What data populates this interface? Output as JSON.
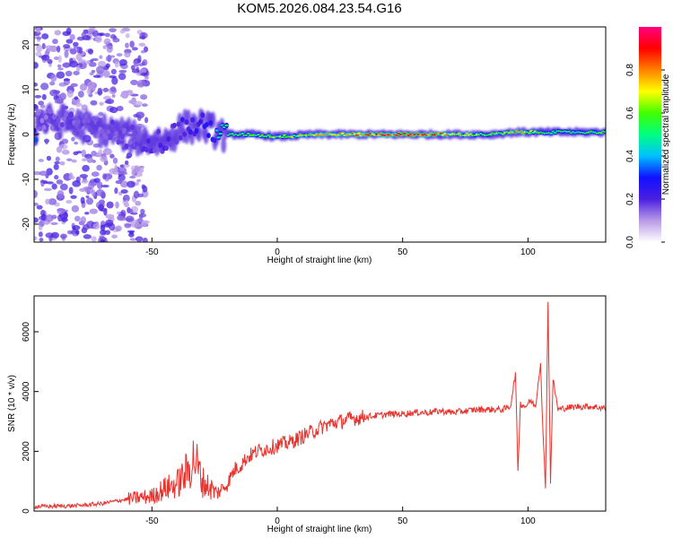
{
  "title": "KOM5.2026.084.23.54.G16",
  "chart_data": [
    {
      "type": "heatmap",
      "xlabel": "Height of straight line (km)",
      "ylabel": "Frequency (Hz)",
      "xlim": [
        -97,
        131
      ],
      "ylim": [
        -24,
        24
      ],
      "xticks": [
        -50,
        0,
        50,
        100
      ],
      "yticks": [
        -20,
        -10,
        0,
        10,
        20
      ],
      "colorbar": {
        "label": "Normalized spectral amplitude",
        "range": [
          0,
          1
        ],
        "ticks": [
          "0.0",
          "0.2",
          "0.4",
          "0.6",
          "0.8"
        ],
        "colors": [
          "#ffffff",
          "#b89ae6",
          "#4a1fe0",
          "#1010ff",
          "#00c0ff",
          "#00ff80",
          "#40ff00",
          "#ffff00",
          "#ff8000",
          "#ff0000",
          "#ff0080"
        ]
      },
      "ridge": [
        {
          "x": -96,
          "y": 3,
          "a": 0.25
        },
        {
          "x": -85,
          "y": 3,
          "a": 0.3
        },
        {
          "x": -75,
          "y": 1.5,
          "a": 0.28
        },
        {
          "x": -65,
          "y": 0.5,
          "a": 0.3
        },
        {
          "x": -55,
          "y": -1,
          "a": 0.3
        },
        {
          "x": -45,
          "y": -1.5,
          "a": 0.35
        },
        {
          "x": -38,
          "y": 1.5,
          "a": 0.38
        },
        {
          "x": -30,
          "y": 2,
          "a": 0.42
        },
        {
          "x": -22,
          "y": 0,
          "a": 0.5
        },
        {
          "x": -10,
          "y": 0,
          "a": 0.55
        },
        {
          "x": 0,
          "y": -0.5,
          "a": 0.6
        },
        {
          "x": 15,
          "y": 0,
          "a": 0.7
        },
        {
          "x": 30,
          "y": 0,
          "a": 0.75
        },
        {
          "x": 45,
          "y": 0,
          "a": 0.85
        },
        {
          "x": 60,
          "y": 0,
          "a": 0.85
        },
        {
          "x": 72,
          "y": 0,
          "a": 0.7
        },
        {
          "x": 85,
          "y": 0,
          "a": 0.55
        },
        {
          "x": 95,
          "y": 0.5,
          "a": 0.75
        },
        {
          "x": 105,
          "y": 0.5,
          "a": 0.55
        },
        {
          "x": 118,
          "y": 0.5,
          "a": 0.5
        },
        {
          "x": 131,
          "y": 0.5,
          "a": 0.55
        }
      ]
    },
    {
      "type": "line",
      "xlabel": "Height of straight line (km)",
      "ylabel": "SNR (10 * v/v)",
      "xlim": [
        -97,
        131
      ],
      "ylim": [
        0,
        7200
      ],
      "xticks": [
        -50,
        0,
        50,
        100
      ],
      "yticks": [
        0,
        2000,
        4000,
        6000
      ],
      "color": "#e8322d",
      "x": [
        -97,
        -80,
        -70,
        -60,
        -50,
        -45,
        -40,
        -36,
        -33,
        -30,
        -27,
        -24,
        -20,
        -17,
        -15,
        -12,
        -8,
        -4,
        0,
        5,
        10,
        15,
        20,
        25,
        30,
        35,
        40,
        45,
        50,
        55,
        60,
        65,
        70,
        75,
        80,
        85,
        90,
        93,
        95,
        96,
        97,
        99,
        101,
        103,
        105,
        106,
        107,
        108,
        109,
        110,
        112,
        115,
        120,
        125,
        131
      ],
      "y": [
        150,
        180,
        250,
        400,
        500,
        750,
        900,
        1300,
        1800,
        1000,
        800,
        600,
        900,
        1400,
        1500,
        1800,
        2000,
        2100,
        2200,
        2300,
        2500,
        2700,
        2900,
        3000,
        3100,
        3150,
        3200,
        3250,
        3250,
        3300,
        3300,
        3350,
        3300,
        3350,
        3400,
        3400,
        3400,
        3500,
        4600,
        1400,
        3600,
        3500,
        3700,
        3500,
        5000,
        2500,
        800,
        7000,
        1000,
        4400,
        3400,
        3450,
        3500,
        3500,
        3450
      ]
    }
  ]
}
